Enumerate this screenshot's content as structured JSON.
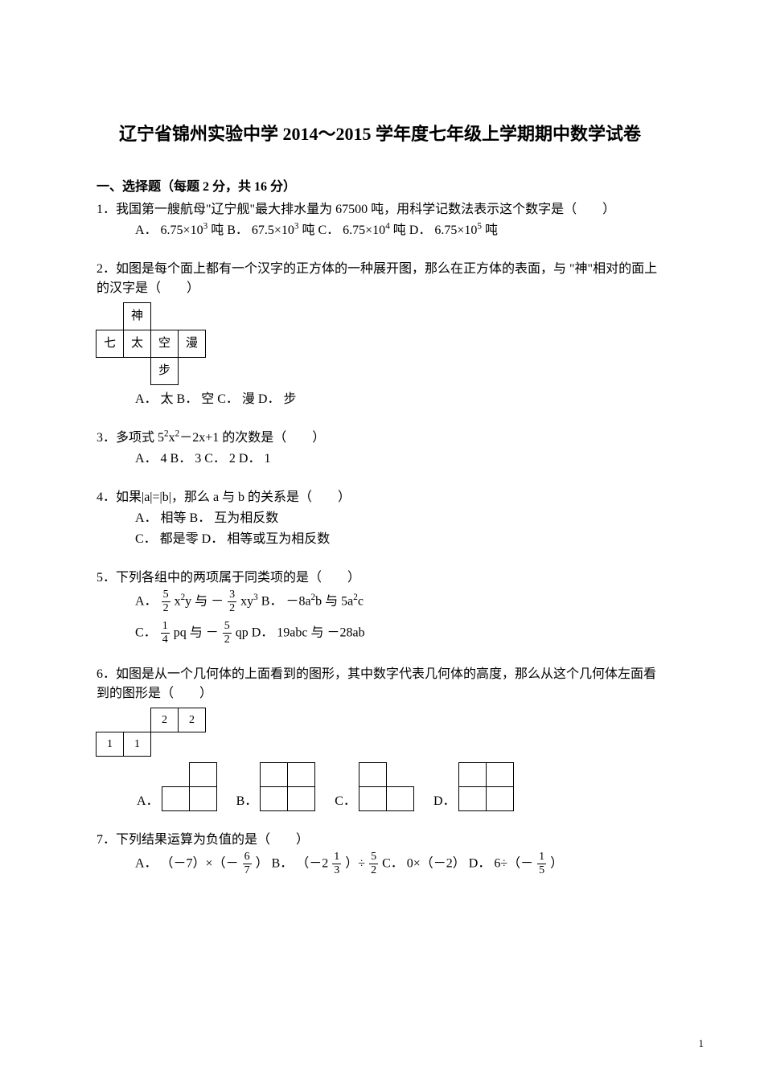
{
  "title": "辽宁省锦州实验中学 2014～2015 学年度七年级上学期期中数学试卷",
  "section1": {
    "header": "一、选择题（每题 2 分，共 16 分）"
  },
  "q1": {
    "text": "1．我国第一艘航母\"辽宁舰\"最大排水量为 67500 吨，用科学记数法表示这个数字是（　　）",
    "optA_pre": "A．  6.75×10",
    "optA_sup": "3",
    "optA_post": " 吨  B．  67.5×10",
    "optB_sup": "3",
    "optB_post": " 吨  C．  6.75×10",
    "optC_sup": "4",
    "optC_post": " 吨  D．  6.75×10",
    "optD_sup": "5",
    "optD_post": " 吨"
  },
  "q2": {
    "text": "2．如图是每个面上都有一个汉字的正方体的一种展开图，那么在正方体的表面，与 \"神\"相对的面上的汉字是（　　）",
    "cells": {
      "r0c1": "神",
      "r1c0": "七",
      "r1c1": "太",
      "r1c2": "空",
      "r1c3": "漫",
      "r2c2": "步"
    },
    "opts": "A．  太  B．  空  C．  漫  D．  步"
  },
  "q3": {
    "text_pre": "3．多项式 5",
    "text_sup1": "2",
    "text_mid1": "x",
    "text_sup2": "2",
    "text_mid2": "－2x+1 的次数是（　　）",
    "opts": "A．  4  B．  3  C．  2  D．  1"
  },
  "q4": {
    "text": "4．如果|a|=|b|，那么 a 与 b 的关系是（　　）",
    "line1": "A．  相等  B．  互为相反数",
    "line2": "C．  都是零  D．  相等或互为相反数"
  },
  "q5": {
    "text": "5．下列各组中的两项属于同类项的是（　　）",
    "A_pre": "A．  ",
    "A_f1n": "5",
    "A_f1d": "2",
    "A_mid1": "x",
    "A_sup1": "2",
    "A_mid2": "y 与 －",
    "A_f2n": "3",
    "A_f2d": "2",
    "A_mid3": "xy",
    "A_sup2": "3",
    "B_pre": "  B．  －8a",
    "B_sup1": "2",
    "B_mid": "b 与 5a",
    "B_sup2": "2",
    "B_post": "c",
    "C_pre": "C．  ",
    "C_f1n": "1",
    "C_f1d": "4",
    "C_mid1": "pq 与 －",
    "C_f2n": "5",
    "C_f2d": "2",
    "C_mid2": "qp",
    "D_pre": "  D．  19abc 与 －28ab"
  },
  "q6": {
    "text": "6．如图是从一个几何体的上面看到的图形，其中数字代表几何体的高度，那么从这个几何体左面看到的图形是（　　）",
    "tv": {
      "r0c2": "2",
      "r0c3": "2",
      "r1c0": "1",
      "r1c1": "1"
    },
    "labels": {
      "A": "A．",
      "B": "B．",
      "C": "C．",
      "D": "D．"
    },
    "shapes": {
      "A": [
        [
          0,
          1
        ],
        [
          1,
          1
        ]
      ],
      "B": [
        [
          1,
          1
        ],
        [
          1,
          1
        ]
      ],
      "C": [
        [
          1,
          0
        ],
        [
          1,
          1
        ]
      ],
      "D": [
        [
          1,
          1
        ],
        [
          1,
          1
        ]
      ]
    }
  },
  "q7": {
    "text": "7．下列结果运算为负值的是（　　）",
    "A_pre": "A．  （－7）×（－",
    "A_fn": "6",
    "A_fd": "7",
    "A_post": "）   B．  （－2 ",
    "B_f1n": "1",
    "B_f1d": "3",
    "B_mid": "）÷",
    "B_f2n": "5",
    "B_f2d": "2",
    "B_post": "  C．  0×（－2）  D．  6÷（－",
    "D_fn": "1",
    "D_fd": "5",
    "D_post": "）"
  },
  "pageNumber": "1"
}
